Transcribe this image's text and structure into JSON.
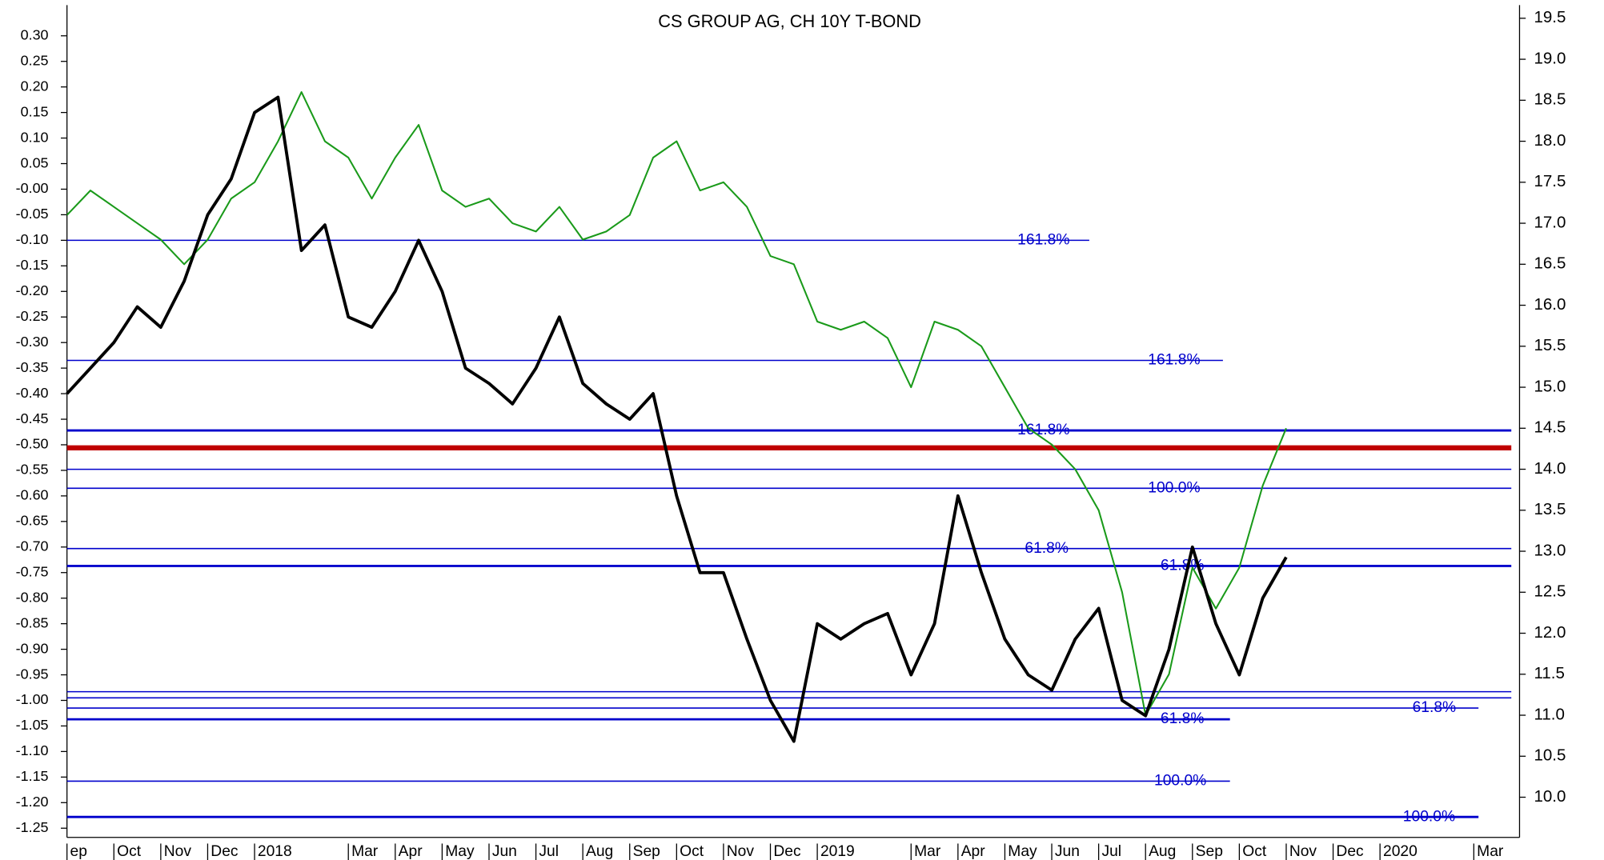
{
  "chart_data": {
    "type": "line",
    "title": "CS GROUP AG, CH 10Y T-BOND",
    "categories": [
      "ep",
      null,
      "Oct",
      null,
      "Nov",
      null,
      "Dec",
      null,
      "2018",
      null,
      null,
      null,
      "Mar",
      null,
      "Apr",
      null,
      "May",
      null,
      "Jun",
      null,
      "Jul",
      null,
      "Aug",
      null,
      "Sep",
      null,
      "Oct",
      null,
      "Nov",
      null,
      "Dec",
      null,
      "2019",
      null,
      null,
      null,
      "Mar",
      null,
      "Apr",
      null,
      "May",
      null,
      "Jun",
      null,
      "Jul",
      null,
      "Aug",
      null,
      "Sep",
      null,
      "Oct",
      null,
      "Nov",
      null,
      "Dec",
      null,
      "2020",
      null,
      null,
      null,
      "Mar",
      null
    ],
    "series": [
      {
        "color": "#000000",
        "axis": "y",
        "values": [
          -0.4,
          -0.35,
          -0.3,
          -0.23,
          -0.27,
          -0.18,
          -0.05,
          0.02,
          0.15,
          0.18,
          -0.12,
          -0.07,
          -0.25,
          -0.27,
          -0.2,
          -0.1,
          -0.2,
          -0.35,
          -0.38,
          -0.42,
          -0.35,
          -0.25,
          -0.38,
          -0.42,
          -0.45,
          -0.4,
          -0.6,
          -0.75,
          -0.75,
          -0.88,
          -1.0,
          -1.08,
          -0.85,
          -0.88,
          -0.85,
          -0.83,
          -0.95,
          -0.85,
          -0.6,
          -0.75,
          -0.88,
          -0.95,
          -0.98,
          -0.88,
          -0.82,
          -1.0,
          -1.03,
          -0.9,
          -0.7,
          -0.85,
          -0.95,
          -0.8,
          -0.72,
          null,
          null,
          null,
          null,
          null,
          null,
          null,
          null,
          null
        ]
      },
      {
        "color": "#1a9a1a",
        "axis": "y2",
        "values": [
          17.1,
          17.4,
          17.2,
          17.0,
          16.8,
          16.5,
          16.8,
          17.3,
          17.5,
          18.0,
          18.6,
          18.0,
          17.8,
          17.3,
          17.8,
          18.2,
          17.4,
          17.2,
          17.3,
          17.0,
          16.9,
          17.2,
          16.8,
          16.9,
          17.1,
          17.8,
          18.0,
          17.4,
          17.5,
          17.2,
          16.6,
          16.5,
          15.8,
          15.7,
          15.8,
          15.6,
          15.0,
          15.8,
          15.7,
          15.5,
          15.0,
          14.5,
          14.3,
          14.0,
          13.5,
          12.5,
          11.0,
          11.5,
          12.8,
          12.3,
          12.8,
          13.8,
          14.5,
          null,
          null,
          null,
          null,
          null,
          null,
          null,
          null,
          null
        ]
      }
    ],
    "levels": [
      {
        "value": -0.1,
        "x_end": 43.6,
        "label": "161.8%",
        "color": "#0000cc"
      },
      {
        "value": -0.335,
        "x_end": 49.3,
        "label": "161.8%",
        "color": "#0000cc"
      },
      {
        "value": -0.472,
        "x_end": 61.6,
        "label": "161.8%",
        "color": "#0000cc",
        "thick": true
      },
      {
        "value": -0.506,
        "x_end": 61.6,
        "color": "#c00000",
        "thick": true
      },
      {
        "value": -0.548,
        "x_end": 61.6,
        "color": "#0000cc"
      },
      {
        "value": -0.585,
        "x_end": 61.6,
        "label": "100.0%",
        "color": "#0000cc"
      },
      {
        "value": -0.703,
        "x_end": 61.6,
        "label": "61.8%",
        "color": "#0000cc"
      },
      {
        "value": -0.737,
        "x_end": 61.6,
        "label": "61.8%",
        "color": "#0000cc",
        "thick": true
      },
      {
        "value": -0.983,
        "x_end": 61.6,
        "color": "#0000cc"
      },
      {
        "value": -0.995,
        "x_end": 61.6,
        "color": "#0000cc"
      },
      {
        "value": -1.015,
        "x_end": 60.2,
        "label": "61.8%",
        "color": "#0000cc"
      },
      {
        "value": -1.037,
        "x_end": 49.6,
        "label": "61.8%",
        "color": "#0000cc",
        "thick": true
      },
      {
        "value": -1.158,
        "x_end": 49.6,
        "label": "100.0%",
        "color": "#0000cc"
      },
      {
        "value": -1.228,
        "x_end": 60.2,
        "label": "100.0%",
        "color": "#0000cc",
        "thick": true
      }
    ],
    "ylim": [
      -1.268,
      0.36
    ],
    "yticks": [
      {
        "value": 0.3,
        "label": "0.30"
      },
      {
        "value": 0.25,
        "label": "0.25"
      },
      {
        "value": 0.2,
        "label": "0.20"
      },
      {
        "value": 0.15,
        "label": "0.15"
      },
      {
        "value": 0.1,
        "label": "0.10"
      },
      {
        "value": 0.05,
        "label": "0.05"
      },
      {
        "value": 0,
        "label": "-0.00"
      },
      {
        "value": -0.05,
        "label": "-0.05"
      },
      {
        "value": -0.1,
        "label": "-0.10"
      },
      {
        "value": -0.15,
        "label": "-0.15"
      },
      {
        "value": -0.2,
        "label": "-0.20"
      },
      {
        "value": -0.25,
        "label": "-0.25"
      },
      {
        "value": -0.3,
        "label": "-0.30"
      },
      {
        "value": -0.35,
        "label": "-0.35"
      },
      {
        "value": -0.4,
        "label": "-0.40"
      },
      {
        "value": -0.45,
        "label": "-0.45"
      },
      {
        "value": -0.5,
        "label": "-0.50"
      },
      {
        "value": -0.55,
        "label": "-0.55"
      },
      {
        "value": -0.6,
        "label": "-0.60"
      },
      {
        "value": -0.65,
        "label": "-0.65"
      },
      {
        "value": -0.7,
        "label": "-0.70"
      },
      {
        "value": -0.75,
        "label": "-0.75"
      },
      {
        "value": -0.8,
        "label": "-0.80"
      },
      {
        "value": -0.85,
        "label": "-0.85"
      },
      {
        "value": -0.9,
        "label": "-0.90"
      },
      {
        "value": -0.95,
        "label": "-0.95"
      },
      {
        "value": -1,
        "label": "-1.00"
      },
      {
        "value": -1.05,
        "label": "-1.05"
      },
      {
        "value": -1.1,
        "label": "-1.10"
      },
      {
        "value": -1.15,
        "label": "-1.15"
      },
      {
        "value": -1.2,
        "label": "-1.20"
      },
      {
        "value": -1.25,
        "label": "-1.25"
      }
    ],
    "y2lim": [
      9.51,
      19.66
    ],
    "y2ticks": [
      19.5,
      {
        "value": 19,
        "label": "19.0"
      },
      18.5,
      {
        "value": 18,
        "label": "18.0"
      },
      17.5,
      {
        "value": 17,
        "label": "17.0"
      },
      16.5,
      {
        "value": 16,
        "label": "16.0"
      },
      15.5,
      {
        "value": 15,
        "label": "15.0"
      },
      14.5,
      {
        "value": 14,
        "label": "14.0"
      },
      13.5,
      {
        "value": 13,
        "label": "13.0"
      },
      12.5,
      {
        "value": 12,
        "label": "12.0"
      },
      11.5,
      {
        "value": 11,
        "label": "11.0"
      },
      10.5,
      {
        "value": 10,
        "label": "10.0"
      }
    ]
  }
}
